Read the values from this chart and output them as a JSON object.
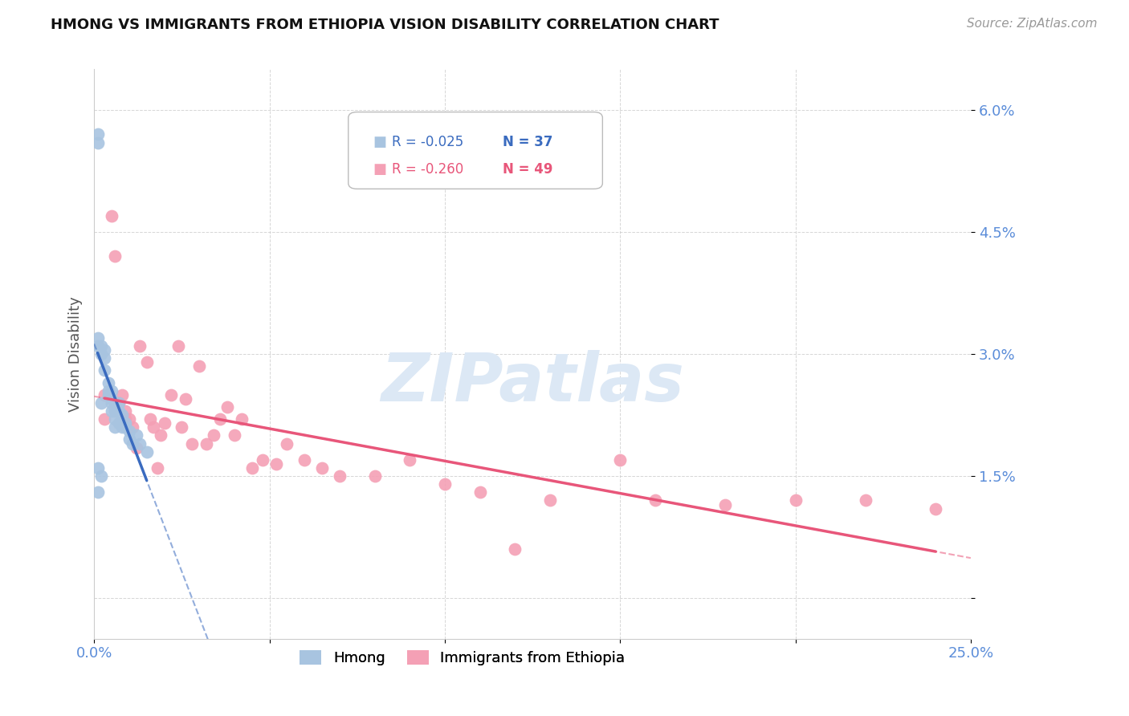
{
  "title": "HMONG VS IMMIGRANTS FROM ETHIOPIA VISION DISABILITY CORRELATION CHART",
  "source": "Source: ZipAtlas.com",
  "ylabel": "Vision Disability",
  "xlim": [
    0.0,
    0.25
  ],
  "ylim": [
    -0.005,
    0.065
  ],
  "yticks": [
    0.0,
    0.015,
    0.03,
    0.045,
    0.06
  ],
  "ytick_labels": [
    "",
    "1.5%",
    "3.0%",
    "4.5%",
    "6.0%"
  ],
  "xticks": [
    0.0,
    0.05,
    0.1,
    0.15,
    0.2,
    0.25
  ],
  "xtick_labels": [
    "0.0%",
    "",
    "",
    "",
    "",
    "25.0%"
  ],
  "legend_r1": "-0.025",
  "legend_n1": "37",
  "legend_r2": "-0.260",
  "legend_n2": "49",
  "hmong_color": "#a8c4e0",
  "ethiopia_color": "#f4a0b5",
  "hmong_line_color": "#3a6bbf",
  "ethiopia_line_color": "#e8567a",
  "watermark": "ZIPatlas",
  "watermark_color": "#dce8f5",
  "hmong_x": [
    0.001,
    0.001,
    0.001,
    0.001,
    0.002,
    0.002,
    0.002,
    0.003,
    0.003,
    0.004,
    0.004,
    0.004,
    0.005,
    0.005,
    0.005,
    0.005,
    0.006,
    0.006,
    0.006,
    0.006,
    0.007,
    0.007,
    0.007,
    0.008,
    0.008,
    0.009,
    0.009,
    0.01,
    0.01,
    0.011,
    0.012,
    0.013,
    0.015,
    0.001,
    0.001,
    0.002,
    0.003
  ],
  "hmong_y": [
    0.057,
    0.056,
    0.032,
    0.031,
    0.031,
    0.03,
    0.024,
    0.0305,
    0.0295,
    0.0265,
    0.0255,
    0.025,
    0.0255,
    0.0245,
    0.024,
    0.023,
    0.023,
    0.0235,
    0.022,
    0.021,
    0.024,
    0.023,
    0.0215,
    0.0225,
    0.021,
    0.0215,
    0.021,
    0.0205,
    0.0195,
    0.019,
    0.02,
    0.019,
    0.018,
    0.016,
    0.013,
    0.015,
    0.028
  ],
  "ethiopia_x": [
    0.003,
    0.005,
    0.006,
    0.008,
    0.009,
    0.01,
    0.011,
    0.013,
    0.015,
    0.016,
    0.017,
    0.019,
    0.02,
    0.022,
    0.024,
    0.025,
    0.026,
    0.028,
    0.03,
    0.032,
    0.034,
    0.036,
    0.038,
    0.04,
    0.042,
    0.045,
    0.048,
    0.052,
    0.055,
    0.06,
    0.065,
    0.07,
    0.08,
    0.09,
    0.1,
    0.11,
    0.12,
    0.13,
    0.15,
    0.16,
    0.18,
    0.2,
    0.22,
    0.24,
    0.003,
    0.007,
    0.009,
    0.012,
    0.018
  ],
  "ethiopia_y": [
    0.022,
    0.047,
    0.042,
    0.025,
    0.022,
    0.022,
    0.021,
    0.031,
    0.029,
    0.022,
    0.021,
    0.02,
    0.0215,
    0.025,
    0.031,
    0.021,
    0.0245,
    0.019,
    0.0285,
    0.019,
    0.02,
    0.022,
    0.0235,
    0.02,
    0.022,
    0.016,
    0.017,
    0.0165,
    0.019,
    0.017,
    0.016,
    0.015,
    0.015,
    0.017,
    0.014,
    0.013,
    0.006,
    0.012,
    0.017,
    0.012,
    0.0115,
    0.012,
    0.012,
    0.011,
    0.025,
    0.024,
    0.023,
    0.0185,
    0.016
  ]
}
